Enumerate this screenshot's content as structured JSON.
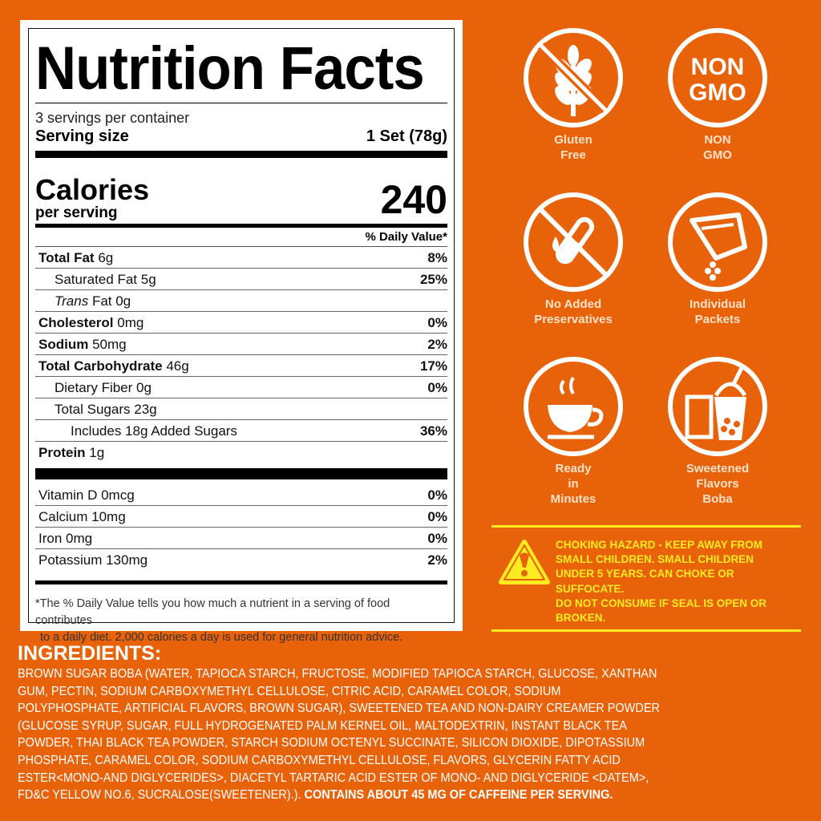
{
  "nutrition": {
    "title": "Nutrition Facts",
    "servings": "3 servings per container",
    "serving_size_label": "Serving size",
    "serving_size_value": "1 Set (78g)",
    "calories_label": "Calories",
    "per_serving": "per serving",
    "calories_value": "240",
    "dv_header": "% Daily Value*",
    "rows": [
      {
        "name": "Total Fat",
        "amount": "6g",
        "dv": "8%",
        "bold": true,
        "indent": 0
      },
      {
        "name": "Saturated Fat",
        "amount": "5g",
        "dv": "25%",
        "bold": false,
        "indent": 1
      },
      {
        "name": "Trans",
        "amount": "Fat 0g",
        "dv": "",
        "bold": false,
        "indent": 1,
        "italic": true
      },
      {
        "name": "Cholesterol",
        "amount": "0mg",
        "dv": "0%",
        "bold": true,
        "indent": 0
      },
      {
        "name": "Sodium",
        "amount": "50mg",
        "dv": "2%",
        "bold": true,
        "indent": 0
      },
      {
        "name": "Total Carbohydrate",
        "amount": "46g",
        "dv": "17%",
        "bold": true,
        "indent": 0
      },
      {
        "name": "Dietary Fiber",
        "amount": "0g",
        "dv": "0%",
        "bold": false,
        "indent": 1
      },
      {
        "name": "Total Sugars",
        "amount": "23g",
        "dv": "",
        "bold": false,
        "indent": 1
      },
      {
        "name": "Includes 18g Added Sugars",
        "amount": "",
        "dv": "36%",
        "bold": false,
        "indent": 2
      },
      {
        "name": "Protein",
        "amount": "1g",
        "dv": "",
        "bold": true,
        "indent": 0
      }
    ],
    "vitamins": [
      {
        "name": "Vitamin D 0mcg",
        "dv": "0%"
      },
      {
        "name": "Calcium 10mg",
        "dv": "0%"
      },
      {
        "name": "Iron  0mg",
        "dv": "0%"
      },
      {
        "name": "Potassium 130mg",
        "dv": "2%"
      }
    ],
    "footnote_1": "*The % Daily Value tells you how much a nutrient in a serving of food contributes",
    "footnote_2": "to a daily diet. 2,000 calories a day is used for general nutrition advice."
  },
  "badges": [
    {
      "icon": "wheat-crossed-icon",
      "label": [
        "Gluten",
        "Free"
      ]
    },
    {
      "icon": "non-gmo-icon",
      "text": [
        "NON",
        "GMO"
      ],
      "label": [
        "NON",
        "GMO"
      ]
    },
    {
      "icon": "test-tube-crossed-icon",
      "label": [
        "No Added",
        "Preservatives"
      ]
    },
    {
      "icon": "packet-icon",
      "label": [
        "Individual",
        "Packets"
      ]
    },
    {
      "icon": "coffee-cup-icon",
      "label": [
        "Ready",
        "in",
        "Minutes"
      ]
    },
    {
      "icon": "boba-cup-icon",
      "label": [
        "Sweetened",
        "Flavors",
        "Boba"
      ]
    }
  ],
  "warning": {
    "icon": "warning-triangle-icon",
    "lines": [
      "CHOKING HAZARD - KEEP AWAY FROM",
      "SMALL CHILDREN. SMALL CHILDREN",
      "UNDER 5 YEARS. CAN CHOKE OR",
      "SUFFOCATE.",
      "DO NOT CONSUME IF SEAL IS OPEN OR",
      "BROKEN."
    ]
  },
  "ingredients": {
    "title": "INGREDIENTS:",
    "lines": [
      "BROWN SUGAR BOBA (WATER, TAPIOCA STARCH, FRUCTOSE, MODIFIED TAPIOCA STARCH, GLUCOSE, XANTHAN",
      "GUM, PECTIN, SODIUM CARBOXYMETHYL CELLULOSE, CITRIC ACID, CARAMEL COLOR, SODIUM",
      "POLYPHOSPHATE, ARTIFICIAL FLAVORS, BROWN SUGAR), SWEETENED TEA AND NON-DAIRY CREAMER POWDER",
      "(GLUCOSE SYRUP, SUGAR, FULL HYDROGENATED PALM KERNEL OIL, MALTODEXTRIN, INSTANT BLACK TEA",
      "POWDER, THAI BLACK TEA POWDER, STARCH SODIUM OCTENYL SUCCINATE, SILICON DIOXIDE, DIPOTASSIUM",
      "PHOSPHATE, CARAMEL COLOR, SODIUM CARBOXYMETHYL CELLULOSE, FLAVORS, GLYCERIN FATTY ACID",
      "ESTER<MONO-AND DIGLYCERIDES>, DIACETYL TARTARIC ACID ESTER OF MONO- AND DIGLYCERIDE <DATEM>,",
      "FD&C YELLOW NO.6, SUCRALOSE(SWEETENER).)."
    ],
    "caffeine": "CONTAINS ABOUT 45 MG OF CAFFEINE PER SERVING."
  },
  "colors": {
    "background": "#e8620a",
    "warning": "#ffec20",
    "label": "#ffffff"
  }
}
